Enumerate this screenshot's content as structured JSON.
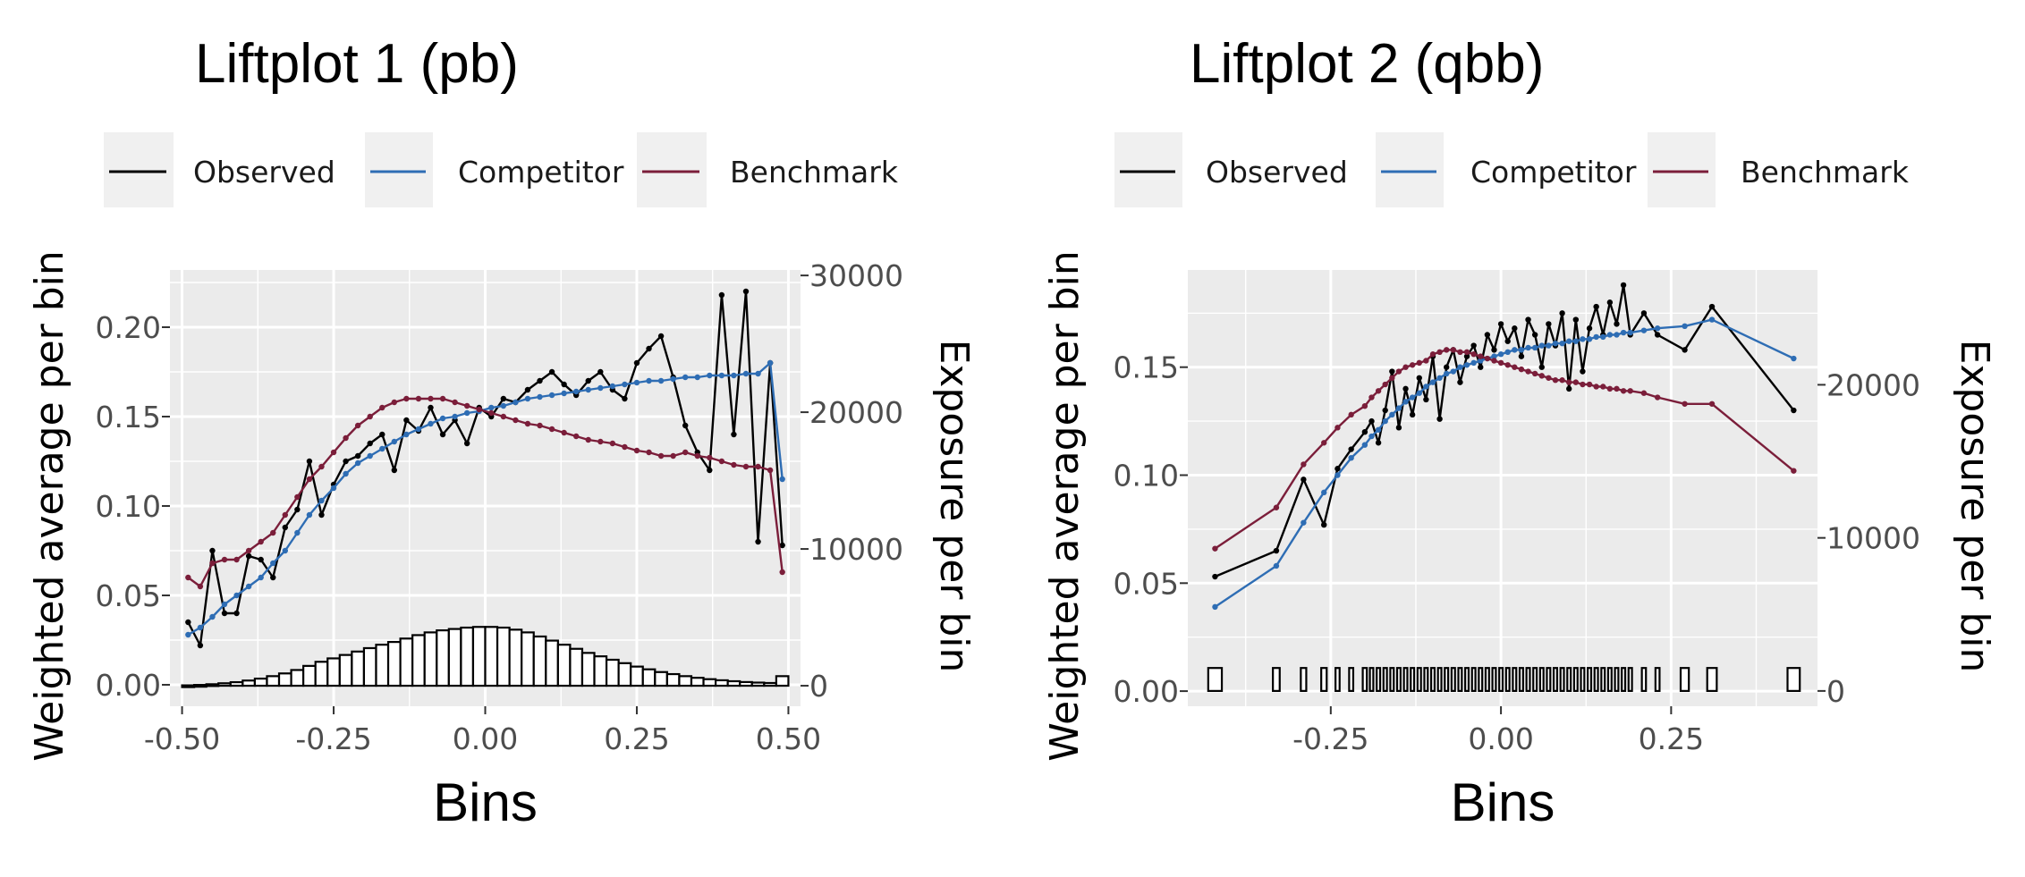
{
  "chart_data": [
    {
      "type": "line",
      "title": "Liftplot 1 (pb)",
      "xlabel": "Bins",
      "ylabel": "Weighted average per bin",
      "y2label": "Exposure per bin",
      "xlim": [
        -0.52,
        0.52
      ],
      "ylim": [
        -0.012,
        0.232
      ],
      "y2lim": [
        -1500,
        30400
      ],
      "x_ticks": [
        "-0.50",
        "-0.25",
        "0.00",
        "0.25",
        "0.50"
      ],
      "y_ticks": [
        "0.00",
        "0.05",
        "0.10",
        "0.15",
        "0.20"
      ],
      "y2_ticks": [
        "0",
        "10000",
        "20000",
        "30000"
      ],
      "legend": {
        "position": "top",
        "entries": [
          "Observed",
          "Competitor",
          "Benchmark"
        ]
      },
      "colors": {
        "Observed": "#000000",
        "Competitor": "#2E6DB4",
        "Benchmark": "#7B1E3A"
      },
      "grid": true,
      "series": [
        {
          "name": "Observed",
          "x": [
            -0.49,
            -0.47,
            -0.45,
            -0.43,
            -0.41,
            -0.39,
            -0.37,
            -0.35,
            -0.33,
            -0.31,
            -0.29,
            -0.27,
            -0.25,
            -0.23,
            -0.21,
            -0.19,
            -0.17,
            -0.15,
            -0.13,
            -0.11,
            -0.09,
            -0.07,
            -0.05,
            -0.03,
            -0.01,
            0.01,
            0.03,
            0.05,
            0.07,
            0.09,
            0.11,
            0.13,
            0.15,
            0.17,
            0.19,
            0.21,
            0.23,
            0.25,
            0.27,
            0.29,
            0.31,
            0.33,
            0.35,
            0.37,
            0.39,
            0.41,
            0.43,
            0.45,
            0.47,
            0.49
          ],
          "values": [
            0.035,
            0.022,
            0.075,
            0.04,
            0.04,
            0.072,
            0.07,
            0.06,
            0.088,
            0.098,
            0.125,
            0.095,
            0.112,
            0.125,
            0.128,
            0.135,
            0.14,
            0.12,
            0.148,
            0.142,
            0.155,
            0.14,
            0.148,
            0.135,
            0.155,
            0.15,
            0.16,
            0.158,
            0.165,
            0.17,
            0.175,
            0.168,
            0.162,
            0.17,
            0.175,
            0.165,
            0.16,
            0.18,
            0.188,
            0.195,
            0.172,
            0.145,
            0.13,
            0.12,
            0.218,
            0.14,
            0.22,
            0.08,
            0.18,
            0.078
          ]
        },
        {
          "name": "Competitor",
          "x": [
            -0.49,
            -0.47,
            -0.45,
            -0.43,
            -0.41,
            -0.39,
            -0.37,
            -0.35,
            -0.33,
            -0.31,
            -0.29,
            -0.27,
            -0.25,
            -0.23,
            -0.21,
            -0.19,
            -0.17,
            -0.15,
            -0.13,
            -0.11,
            -0.09,
            -0.07,
            -0.05,
            -0.03,
            -0.01,
            0.01,
            0.03,
            0.05,
            0.07,
            0.09,
            0.11,
            0.13,
            0.15,
            0.17,
            0.19,
            0.21,
            0.23,
            0.25,
            0.27,
            0.29,
            0.31,
            0.33,
            0.35,
            0.37,
            0.39,
            0.41,
            0.43,
            0.45,
            0.47,
            0.49
          ],
          "values": [
            0.028,
            0.032,
            0.038,
            0.045,
            0.05,
            0.055,
            0.06,
            0.068,
            0.075,
            0.085,
            0.095,
            0.103,
            0.11,
            0.118,
            0.124,
            0.128,
            0.132,
            0.136,
            0.14,
            0.143,
            0.146,
            0.149,
            0.15,
            0.152,
            0.153,
            0.155,
            0.156,
            0.158,
            0.16,
            0.161,
            0.162,
            0.163,
            0.164,
            0.165,
            0.166,
            0.167,
            0.168,
            0.169,
            0.17,
            0.17,
            0.171,
            0.172,
            0.172,
            0.173,
            0.173,
            0.173,
            0.174,
            0.174,
            0.18,
            0.115
          ]
        },
        {
          "name": "Benchmark",
          "x": [
            -0.49,
            -0.47,
            -0.45,
            -0.43,
            -0.41,
            -0.39,
            -0.37,
            -0.35,
            -0.33,
            -0.31,
            -0.29,
            -0.27,
            -0.25,
            -0.23,
            -0.21,
            -0.19,
            -0.17,
            -0.15,
            -0.13,
            -0.11,
            -0.09,
            -0.07,
            -0.05,
            -0.03,
            -0.01,
            0.01,
            0.03,
            0.05,
            0.07,
            0.09,
            0.11,
            0.13,
            0.15,
            0.17,
            0.19,
            0.21,
            0.23,
            0.25,
            0.27,
            0.29,
            0.31,
            0.33,
            0.35,
            0.37,
            0.39,
            0.41,
            0.43,
            0.45,
            0.47,
            0.49
          ],
          "values": [
            0.06,
            0.055,
            0.068,
            0.07,
            0.07,
            0.075,
            0.08,
            0.085,
            0.095,
            0.105,
            0.115,
            0.122,
            0.13,
            0.138,
            0.145,
            0.15,
            0.155,
            0.158,
            0.16,
            0.16,
            0.16,
            0.16,
            0.158,
            0.156,
            0.154,
            0.152,
            0.15,
            0.148,
            0.146,
            0.145,
            0.143,
            0.141,
            0.139,
            0.137,
            0.136,
            0.135,
            0.133,
            0.131,
            0.13,
            0.128,
            0.128,
            0.13,
            0.128,
            0.127,
            0.125,
            0.123,
            0.122,
            0.122,
            0.12,
            0.063
          ]
        }
      ],
      "exposure": {
        "x": [
          -0.49,
          -0.47,
          -0.45,
          -0.43,
          -0.41,
          -0.39,
          -0.37,
          -0.35,
          -0.33,
          -0.31,
          -0.29,
          -0.27,
          -0.25,
          -0.23,
          -0.21,
          -0.19,
          -0.17,
          -0.15,
          -0.13,
          -0.11,
          -0.09,
          -0.07,
          -0.05,
          -0.03,
          -0.01,
          0.01,
          0.03,
          0.05,
          0.07,
          0.09,
          0.11,
          0.13,
          0.15,
          0.17,
          0.19,
          0.21,
          0.23,
          0.25,
          0.27,
          0.29,
          0.31,
          0.33,
          0.35,
          0.37,
          0.39,
          0.41,
          0.43,
          0.45,
          0.47,
          0.49
        ],
        "values": [
          30,
          60,
          110,
          180,
          260,
          380,
          520,
          700,
          900,
          1150,
          1450,
          1750,
          2000,
          2250,
          2500,
          2750,
          3000,
          3200,
          3450,
          3700,
          3900,
          4050,
          4150,
          4250,
          4300,
          4300,
          4250,
          4100,
          3900,
          3600,
          3300,
          3000,
          2700,
          2400,
          2150,
          1900,
          1650,
          1400,
          1200,
          1000,
          850,
          700,
          580,
          480,
          400,
          330,
          270,
          230,
          200,
          700
        ],
        "bar_width": 0.02
      }
    },
    {
      "type": "line",
      "title": "Liftplot 2 (qbb)",
      "xlabel": "Bins",
      "ylabel": "Weighted average per bin",
      "y2label": "Exposure per bin",
      "xlim": [
        -0.46,
        0.465
      ],
      "ylim": [
        -0.007,
        0.195
      ],
      "y2lim": [
        -1000,
        27500
      ],
      "x_ticks": [
        "-0.25",
        "0.00",
        "0.25"
      ],
      "y_ticks": [
        "0.00",
        "0.05",
        "0.10",
        "0.15"
      ],
      "y2_ticks": [
        "0",
        "10000",
        "20000"
      ],
      "legend": {
        "position": "top",
        "entries": [
          "Observed",
          "Competitor",
          "Benchmark"
        ]
      },
      "colors": {
        "Observed": "#000000",
        "Competitor": "#2E6DB4",
        "Benchmark": "#7B1E3A"
      },
      "grid": true,
      "series": [
        {
          "name": "Observed",
          "x": [
            -0.42,
            -0.33,
            -0.29,
            -0.26,
            -0.24,
            -0.22,
            -0.2,
            -0.19,
            -0.18,
            -0.17,
            -0.16,
            -0.15,
            -0.14,
            -0.13,
            -0.12,
            -0.11,
            -0.1,
            -0.09,
            -0.08,
            -0.07,
            -0.06,
            -0.05,
            -0.04,
            -0.03,
            -0.02,
            -0.01,
            0.0,
            0.01,
            0.02,
            0.03,
            0.04,
            0.05,
            0.06,
            0.07,
            0.08,
            0.09,
            0.1,
            0.11,
            0.12,
            0.13,
            0.14,
            0.15,
            0.16,
            0.17,
            0.18,
            0.19,
            0.21,
            0.23,
            0.27,
            0.31,
            0.43
          ],
          "values": [
            0.053,
            0.065,
            0.098,
            0.077,
            0.103,
            0.112,
            0.12,
            0.125,
            0.115,
            0.13,
            0.148,
            0.122,
            0.14,
            0.128,
            0.145,
            0.135,
            0.155,
            0.126,
            0.15,
            0.158,
            0.143,
            0.155,
            0.16,
            0.15,
            0.165,
            0.158,
            0.17,
            0.162,
            0.168,
            0.155,
            0.172,
            0.165,
            0.15,
            0.17,
            0.16,
            0.175,
            0.14,
            0.172,
            0.148,
            0.168,
            0.178,
            0.165,
            0.18,
            0.17,
            0.188,
            0.165,
            0.175,
            0.165,
            0.158,
            0.178,
            0.13
          ]
        },
        {
          "name": "Competitor",
          "x": [
            -0.42,
            -0.33,
            -0.29,
            -0.26,
            -0.24,
            -0.22,
            -0.2,
            -0.19,
            -0.18,
            -0.17,
            -0.16,
            -0.15,
            -0.14,
            -0.13,
            -0.12,
            -0.11,
            -0.1,
            -0.09,
            -0.08,
            -0.07,
            -0.06,
            -0.05,
            -0.04,
            -0.03,
            -0.02,
            -0.01,
            0.0,
            0.01,
            0.02,
            0.03,
            0.04,
            0.05,
            0.06,
            0.07,
            0.08,
            0.09,
            0.1,
            0.11,
            0.12,
            0.13,
            0.14,
            0.15,
            0.16,
            0.17,
            0.18,
            0.19,
            0.21,
            0.23,
            0.27,
            0.31,
            0.43
          ],
          "values": [
            0.039,
            0.058,
            0.078,
            0.092,
            0.1,
            0.108,
            0.114,
            0.118,
            0.121,
            0.125,
            0.128,
            0.131,
            0.134,
            0.136,
            0.138,
            0.141,
            0.143,
            0.145,
            0.147,
            0.148,
            0.15,
            0.151,
            0.152,
            0.153,
            0.154,
            0.155,
            0.156,
            0.157,
            0.158,
            0.158,
            0.159,
            0.159,
            0.16,
            0.16,
            0.161,
            0.161,
            0.162,
            0.162,
            0.163,
            0.163,
            0.164,
            0.164,
            0.165,
            0.165,
            0.166,
            0.166,
            0.167,
            0.168,
            0.169,
            0.172,
            0.154
          ]
        },
        {
          "name": "Benchmark",
          "x": [
            -0.42,
            -0.33,
            -0.29,
            -0.26,
            -0.24,
            -0.22,
            -0.2,
            -0.19,
            -0.18,
            -0.17,
            -0.16,
            -0.15,
            -0.14,
            -0.13,
            -0.12,
            -0.11,
            -0.1,
            -0.09,
            -0.08,
            -0.07,
            -0.06,
            -0.05,
            -0.04,
            -0.03,
            -0.02,
            -0.01,
            0.0,
            0.01,
            0.02,
            0.03,
            0.04,
            0.05,
            0.06,
            0.07,
            0.08,
            0.09,
            0.1,
            0.11,
            0.12,
            0.13,
            0.14,
            0.15,
            0.16,
            0.17,
            0.18,
            0.19,
            0.21,
            0.23,
            0.27,
            0.31,
            0.43
          ],
          "values": [
            0.066,
            0.085,
            0.105,
            0.115,
            0.122,
            0.128,
            0.132,
            0.136,
            0.139,
            0.142,
            0.145,
            0.148,
            0.15,
            0.151,
            0.152,
            0.153,
            0.156,
            0.157,
            0.158,
            0.158,
            0.157,
            0.157,
            0.156,
            0.155,
            0.154,
            0.153,
            0.152,
            0.151,
            0.15,
            0.149,
            0.148,
            0.147,
            0.146,
            0.145,
            0.144,
            0.144,
            0.143,
            0.143,
            0.142,
            0.142,
            0.141,
            0.141,
            0.14,
            0.14,
            0.139,
            0.139,
            0.138,
            0.136,
            0.133,
            0.133,
            0.102
          ]
        }
      ],
      "exposure": {
        "x": [
          -0.42,
          -0.33,
          -0.29,
          -0.26,
          -0.24,
          -0.22,
          -0.2,
          -0.19,
          -0.18,
          -0.17,
          -0.16,
          -0.15,
          -0.14,
          -0.13,
          -0.12,
          -0.11,
          -0.1,
          -0.09,
          -0.08,
          -0.07,
          -0.06,
          -0.05,
          -0.04,
          -0.03,
          -0.02,
          -0.01,
          0.0,
          0.01,
          0.02,
          0.03,
          0.04,
          0.05,
          0.06,
          0.07,
          0.08,
          0.09,
          0.1,
          0.11,
          0.12,
          0.13,
          0.14,
          0.15,
          0.16,
          0.17,
          0.18,
          0.19,
          0.21,
          0.23,
          0.27,
          0.31,
          0.43
        ],
        "values": [
          1500,
          1500,
          1500,
          1500,
          1500,
          1500,
          1500,
          1500,
          1500,
          1500,
          1500,
          1500,
          1500,
          1500,
          1500,
          1500,
          1500,
          1500,
          1500,
          1500,
          1500,
          1500,
          1500,
          1500,
          1500,
          1500,
          1500,
          1500,
          1500,
          1500,
          1500,
          1500,
          1500,
          1500,
          1500,
          1500,
          1500,
          1500,
          1500,
          1500,
          1500,
          1500,
          1500,
          1500,
          1500,
          1500,
          1500,
          1500,
          1500,
          1500,
          1500
        ],
        "bar_width": [
          0.02,
          0.01,
          0.008,
          0.008,
          0.006,
          0.006,
          0.006,
          0.005,
          0.005,
          0.005,
          0.005,
          0.005,
          0.005,
          0.005,
          0.005,
          0.005,
          0.005,
          0.005,
          0.005,
          0.005,
          0.005,
          0.005,
          0.005,
          0.005,
          0.005,
          0.005,
          0.005,
          0.005,
          0.005,
          0.005,
          0.005,
          0.005,
          0.005,
          0.005,
          0.005,
          0.005,
          0.005,
          0.005,
          0.005,
          0.005,
          0.005,
          0.005,
          0.005,
          0.005,
          0.005,
          0.005,
          0.006,
          0.006,
          0.012,
          0.014,
          0.018
        ]
      }
    }
  ]
}
